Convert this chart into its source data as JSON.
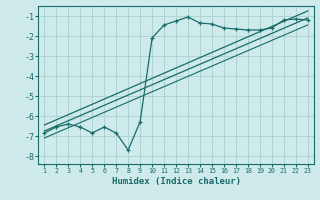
{
  "title": "",
  "xlabel": "Humidex (Indice chaleur)",
  "ylabel": "",
  "bg_color": "#ceeaea",
  "grid_color": "#aed4d4",
  "line_color": "#1a6b6b",
  "xlim": [
    0.5,
    23.5
  ],
  "ylim": [
    -8.4,
    -0.5
  ],
  "yticks": [
    -8,
    -7,
    -6,
    -5,
    -4,
    -3,
    -2,
    -1
  ],
  "xticks": [
    1,
    2,
    3,
    4,
    5,
    6,
    7,
    8,
    9,
    10,
    11,
    12,
    13,
    14,
    15,
    16,
    17,
    18,
    19,
    20,
    21,
    22,
    23
  ],
  "data_x": [
    1,
    2,
    3,
    4,
    5,
    6,
    7,
    8,
    9,
    10,
    11,
    12,
    13,
    14,
    15,
    16,
    17,
    18,
    19,
    20,
    21,
    22,
    23
  ],
  "data_y": [
    -6.85,
    -6.55,
    -6.4,
    -6.55,
    -6.85,
    -6.55,
    -6.85,
    -7.7,
    -6.3,
    -2.1,
    -1.45,
    -1.25,
    -1.05,
    -1.35,
    -1.4,
    -1.6,
    -1.65,
    -1.7,
    -1.7,
    -1.6,
    -1.2,
    -1.15,
    -1.2
  ],
  "line1_x": [
    1,
    23
  ],
  "line1_y": [
    -6.75,
    -1.1
  ],
  "line2_x": [
    1,
    23
  ],
  "line2_y": [
    -6.45,
    -0.75
  ],
  "line3_x": [
    1,
    23
  ],
  "line3_y": [
    -7.1,
    -1.45
  ]
}
